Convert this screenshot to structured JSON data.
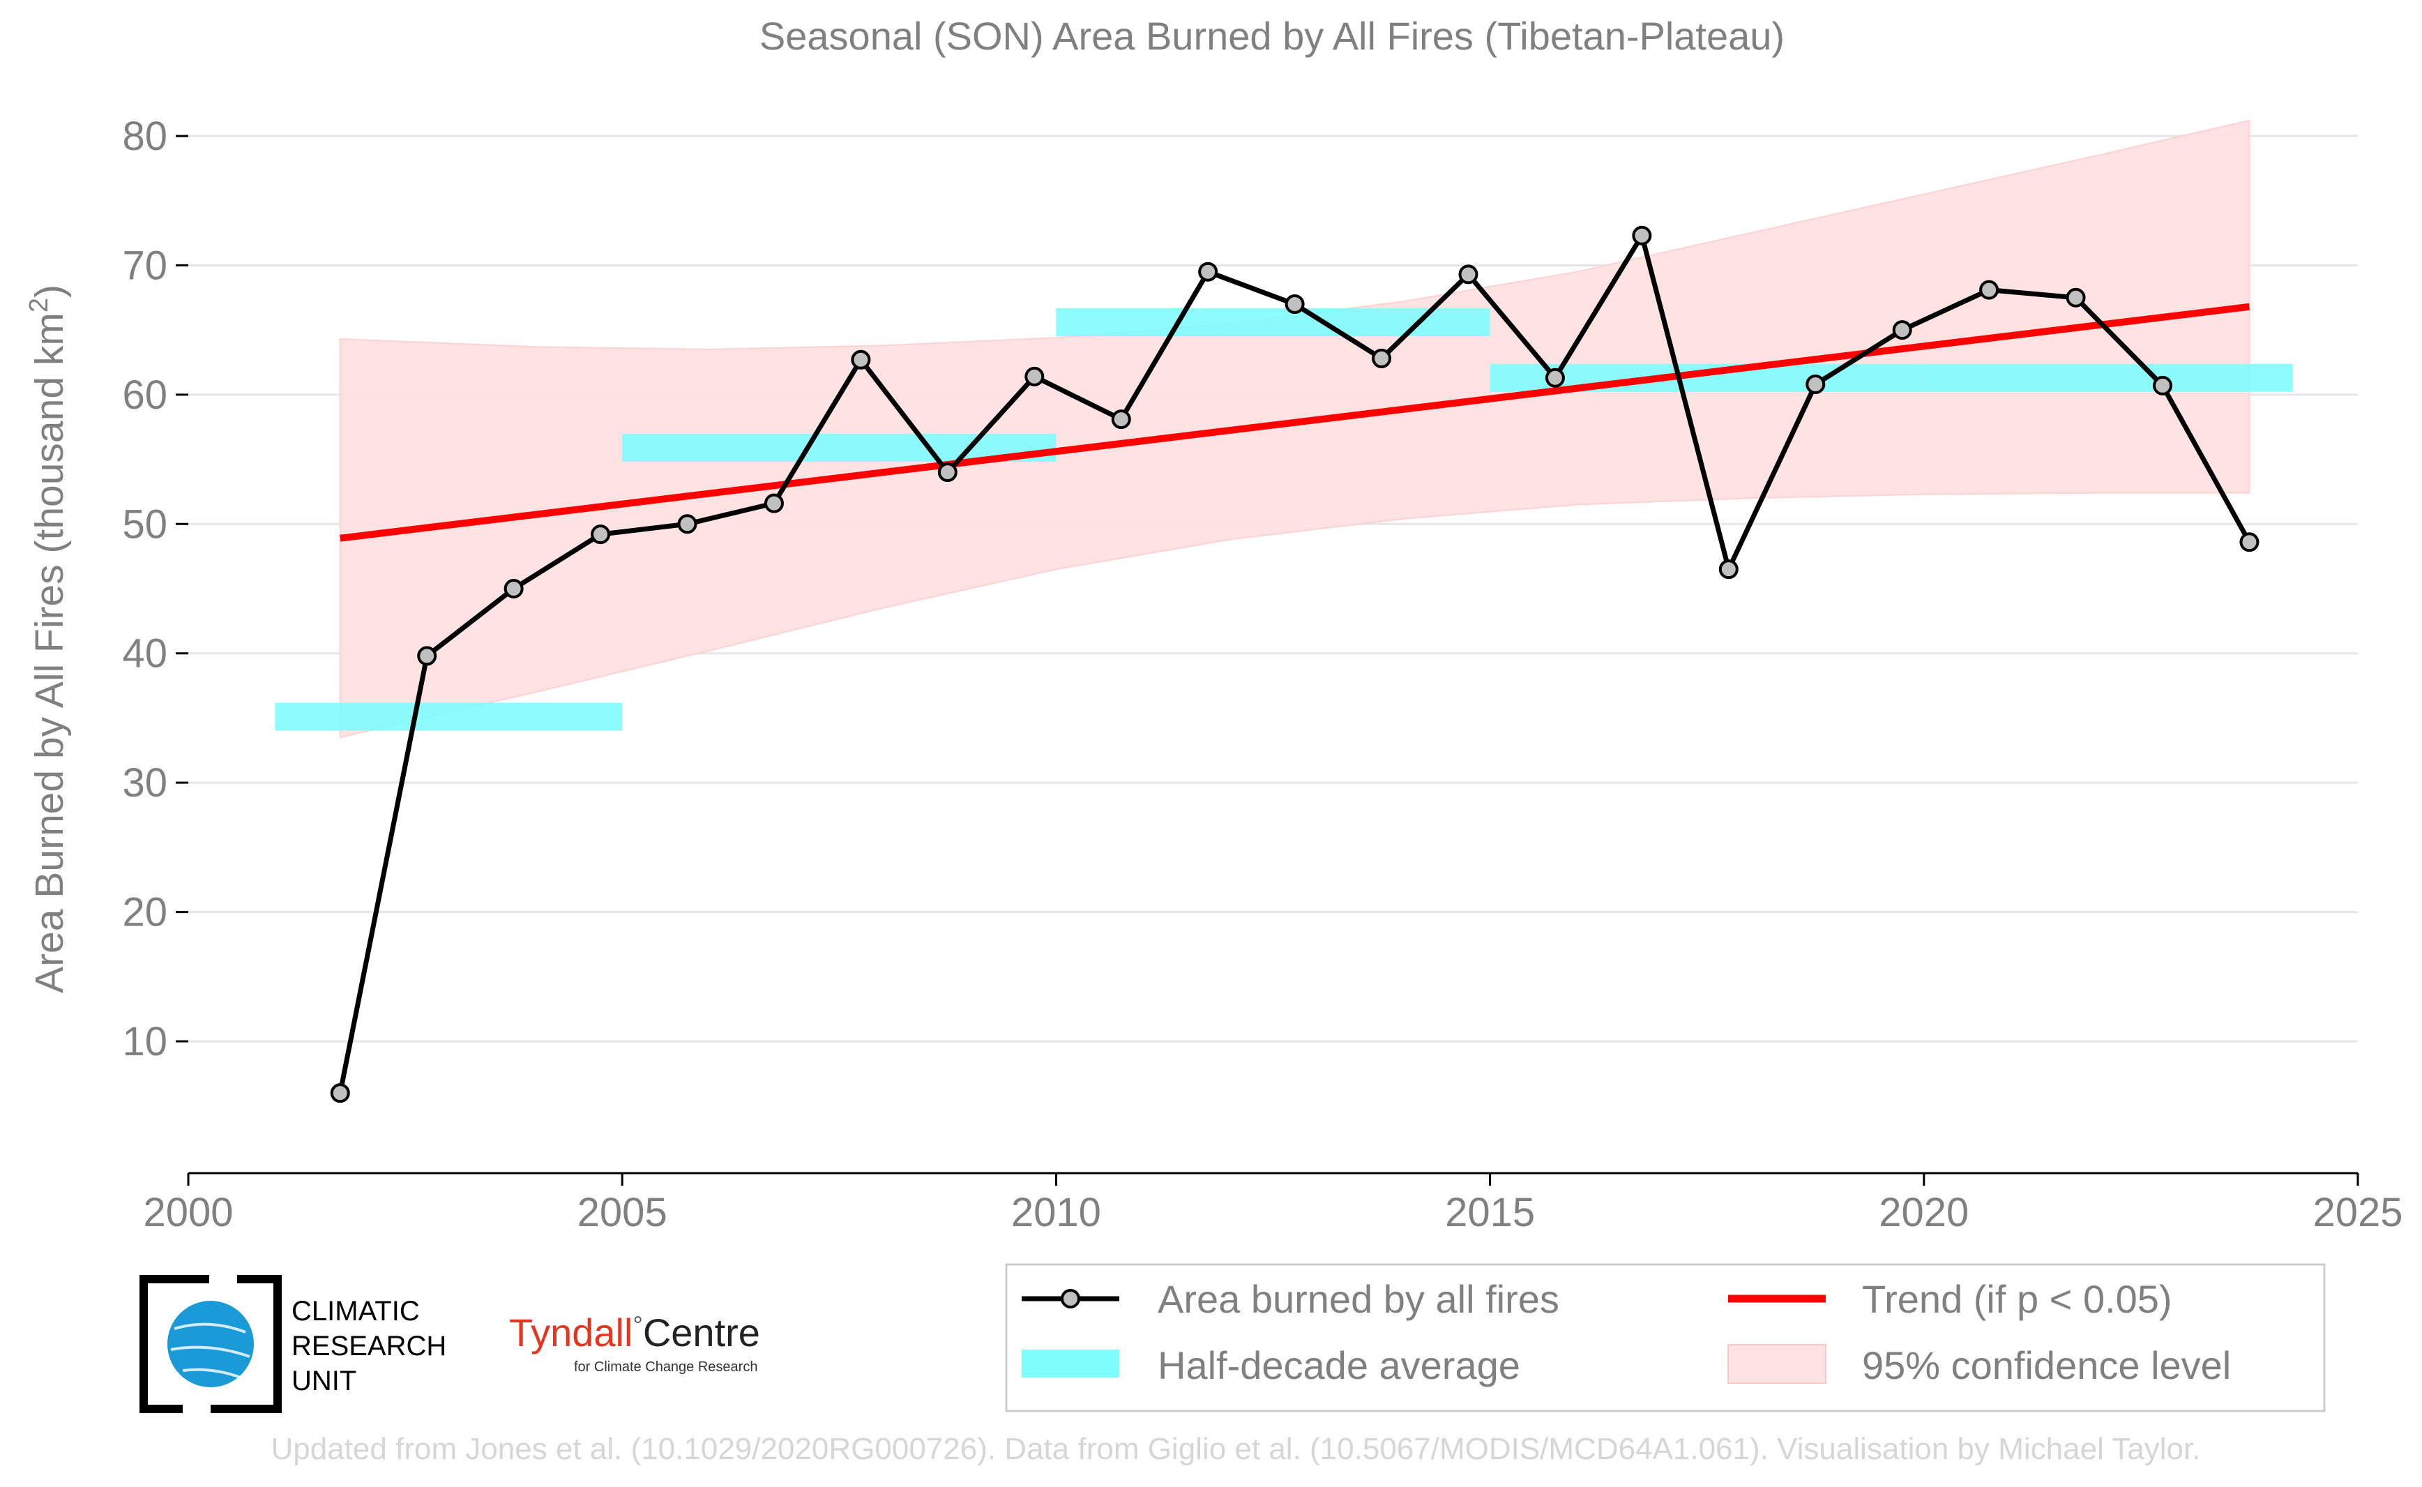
{
  "chart_data": {
    "type": "line",
    "title": "Seasonal (SON) Area Burned by All Fires (Tibetan-Plateau)",
    "ylabel": "Area Burned by All Fires (thousand km",
    "ylabel_sup": "2",
    "ylabel_end": ")",
    "xlim": [
      2000,
      2025
    ],
    "ylim": [
      0,
      82
    ],
    "xticks": [
      2000,
      2005,
      2010,
      2015,
      2020,
      2025
    ],
    "yticks": [
      10,
      20,
      30,
      40,
      50,
      60,
      70,
      80
    ],
    "grid": true,
    "series": [
      {
        "name": "Area burned by all fires",
        "color": "#000000",
        "x": [
          2001.75,
          2002.75,
          2003.75,
          2004.75,
          2005.75,
          2006.75,
          2007.75,
          2008.75,
          2009.75,
          2010.75,
          2011.75,
          2012.75,
          2013.75,
          2014.75,
          2015.75,
          2016.75,
          2017.75,
          2018.75,
          2019.75,
          2020.75,
          2021.75,
          2022.75,
          2023.75
        ],
        "y": [
          6.0,
          39.8,
          45.0,
          49.2,
          50.0,
          51.6,
          62.7,
          54.0,
          61.4,
          58.1,
          69.5,
          67.0,
          62.8,
          69.3,
          61.3,
          72.3,
          46.5,
          60.8,
          65.0,
          68.1,
          67.5,
          60.7,
          48.6
        ]
      },
      {
        "name": "Half-decade average",
        "color": "#7ffcfc",
        "segments": [
          {
            "x0": 2001,
            "x1": 2005,
            "y": 35.1
          },
          {
            "x0": 2005,
            "x1": 2010,
            "y": 55.9
          },
          {
            "x0": 2010,
            "x1": 2015,
            "y": 65.6
          },
          {
            "x0": 2015,
            "x1": 2020,
            "y": 61.3
          },
          {
            "x0": 2020,
            "x1": 2024.25,
            "y": 61.3
          }
        ]
      },
      {
        "name": "Trend (if p < 0.05)",
        "color": "#ff0000",
        "x": [
          2001.75,
          2023.75
        ],
        "y": [
          48.9,
          66.8
        ]
      },
      {
        "name": "95% confidence level",
        "color": "#ffe2e2",
        "x": [
          2001.75,
          2004,
          2006,
          2008,
          2010,
          2012,
          2014,
          2016,
          2018,
          2020,
          2022,
          2023.75
        ],
        "upper": [
          64.3,
          63.7,
          63.5,
          63.8,
          64.4,
          65.5,
          67.2,
          69.5,
          72.5,
          75.5,
          78.5,
          81.2
        ],
        "lower": [
          33.5,
          37.0,
          40.2,
          43.5,
          46.5,
          48.8,
          50.4,
          51.5,
          52.0,
          52.3,
          52.4,
          52.4
        ]
      }
    ],
    "legend": {
      "position": "bottom-right",
      "items": [
        "Area burned by all fires",
        "Trend (if p < 0.05)",
        "Half-decade average",
        "95% confidence level"
      ]
    }
  },
  "logos": {
    "cru_lines": [
      "CLIMATIC",
      "RESEARCH",
      "UNIT"
    ],
    "tyndall_name": "Tyndall",
    "tyndall_degree": "°",
    "tyndall_centre": "Centre",
    "tyndall_sub": "for Climate Change Research"
  },
  "footer": "Updated from Jones et al. (10.1029/2020RG000726). Data from Giglio et al. (10.5067/MODIS/MCD64A1.061). Visualisation by Michael Taylor."
}
